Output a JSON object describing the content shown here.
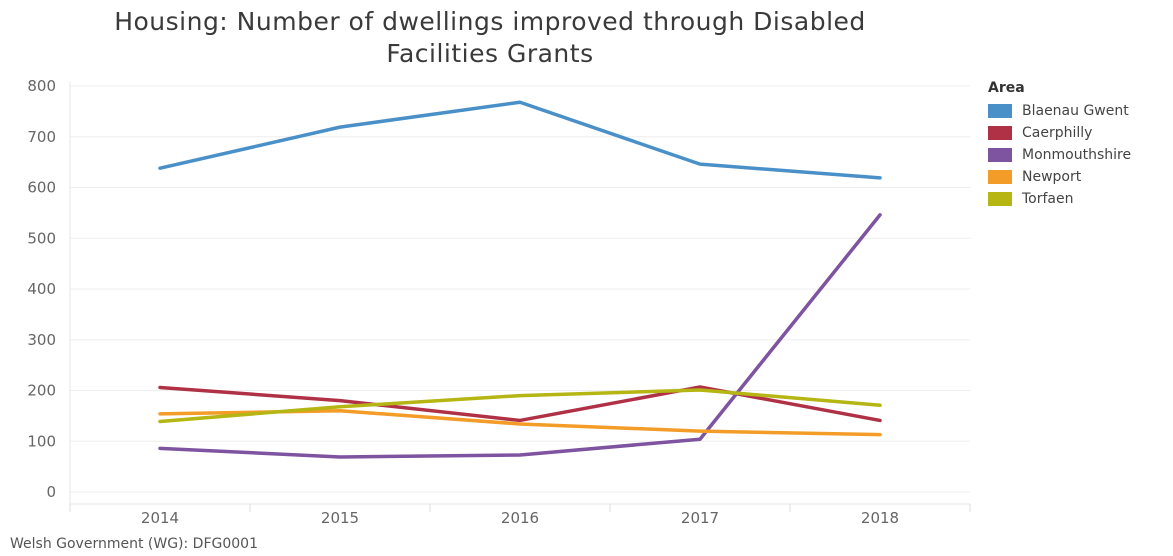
{
  "title_lines": [
    "Housing: Number of dwellings improved through Disabled",
    "Facilities Grants"
  ],
  "source": "Welsh Government (WG): DFG0001",
  "legend_title": "Area",
  "chart_data": {
    "type": "line",
    "title": "Housing: Number of dwellings improved through Disabled Facilities Grants",
    "x": [
      "2014",
      "2015",
      "2016",
      "2017",
      "2018"
    ],
    "xlabel": "",
    "ylabel": "",
    "ylim": [
      0,
      800
    ],
    "yticks": [
      0,
      100,
      200,
      300,
      400,
      500,
      600,
      700,
      800
    ],
    "grid": true,
    "legend_position": "right",
    "series": [
      {
        "name": "Blaenau Gwent",
        "color": "#4a90c8",
        "values": [
          638,
          719,
          768,
          646,
          619
        ]
      },
      {
        "name": "Caerphilly",
        "color": "#b03146",
        "values": [
          206,
          180,
          141,
          207,
          141
        ]
      },
      {
        "name": "Monmouthshire",
        "color": "#7e53a0",
        "values": [
          86,
          69,
          73,
          104,
          546
        ]
      },
      {
        "name": "Newport",
        "color": "#f39c28",
        "values": [
          154,
          160,
          134,
          120,
          113
        ]
      },
      {
        "name": "Torfaen",
        "color": "#b5b514",
        "values": [
          139,
          168,
          190,
          201,
          171
        ]
      }
    ]
  }
}
